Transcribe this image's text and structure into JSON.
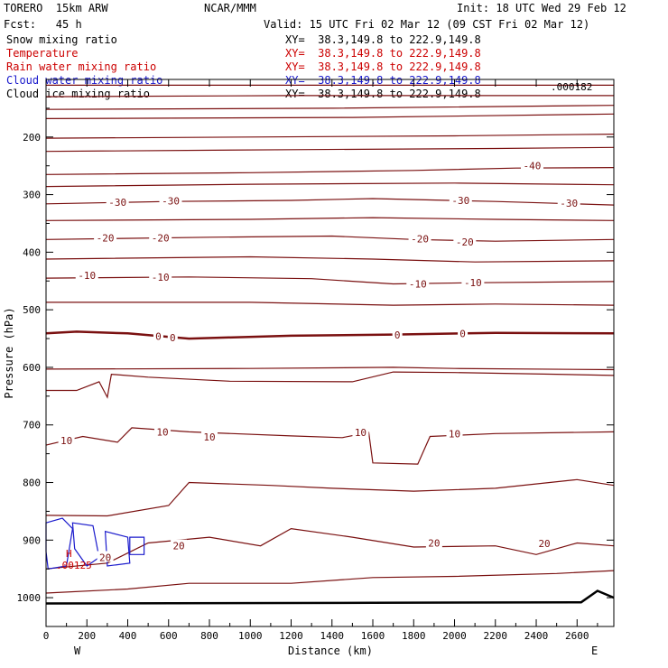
{
  "header": {
    "model": "TORERO  15km ARW",
    "org": "NCAR/MMM",
    "init": "Init: 18 UTC Wed 29 Feb 12",
    "fcst": "Fcst:   45 h",
    "valid": "Valid: 15 UTC Fri 02 Mar 12 (09 CST Fri 02 Mar 12)"
  },
  "legend": [
    {
      "label": "Snow mixing ratio",
      "xy": "XY=  38.3,149.8 to 222.9,149.8",
      "color": "#000000"
    },
    {
      "label": "Temperature",
      "xy": "XY=  38.3,149.8 to 222.9,149.8",
      "color": "#cc0000"
    },
    {
      "label": "Rain water mixing ratio",
      "xy": "XY=  38.3,149.8 to 222.9,149.8",
      "color": "#cc0000"
    },
    {
      "label": "Cloud water mixing ratio",
      "xy": "XY=  38.3,149.8 to 222.9,149.8",
      "color": "#1a1acc"
    },
    {
      "label": "Cloud ice mixing ratio",
      "xy": "XY=  38.3,149.8 to 222.9,149.8",
      "color": "#000000"
    }
  ],
  "chart_data": {
    "type": "cross-section contour",
    "xlabel": "Distance (km)",
    "ylabel": "Pressure (hPa)",
    "xlim": [
      0,
      2780
    ],
    "ylim": [
      1050,
      100
    ],
    "x_ticks": [
      0,
      200,
      400,
      600,
      800,
      1000,
      1200,
      1400,
      1600,
      1800,
      2000,
      2200,
      2400,
      2600
    ],
    "y_ticks": [
      200,
      300,
      400,
      500,
      600,
      700,
      800,
      900,
      1000
    ],
    "x_end_labels": {
      "left": "W",
      "right": "E"
    },
    "ice_max_label": ".000182",
    "cloud_water_labels": {
      "high": "H",
      "low_value": ".00125"
    },
    "temperature_labels": [
      {
        "text": "-40",
        "x": 2380,
        "p": 250
      },
      {
        "text": "-30",
        "x": 350,
        "p": 313
      },
      {
        "text": "-30",
        "x": 610,
        "p": 311
      },
      {
        "text": "-30",
        "x": 2030,
        "p": 310
      },
      {
        "text": "-30",
        "x": 2560,
        "p": 315
      },
      {
        "text": "-20",
        "x": 290,
        "p": 375
      },
      {
        "text": "-20",
        "x": 560,
        "p": 375
      },
      {
        "text": "-20",
        "x": 1830,
        "p": 377
      },
      {
        "text": "-20",
        "x": 2050,
        "p": 382
      },
      {
        "text": "-10",
        "x": 200,
        "p": 440
      },
      {
        "text": "-10",
        "x": 560,
        "p": 443
      },
      {
        "text": "-10",
        "x": 1820,
        "p": 455
      },
      {
        "text": "-10",
        "x": 2090,
        "p": 453
      },
      {
        "text": "0",
        "x": 550,
        "p": 546
      },
      {
        "text": "0",
        "x": 620,
        "p": 548
      },
      {
        "text": "0",
        "x": 1720,
        "p": 544
      },
      {
        "text": "0",
        "x": 2040,
        "p": 541
      },
      {
        "text": "10",
        "x": 100,
        "p": 727
      },
      {
        "text": "10",
        "x": 570,
        "p": 712
      },
      {
        "text": "10",
        "x": 800,
        "p": 721
      },
      {
        "text": "10",
        "x": 1540,
        "p": 713
      },
      {
        "text": "10",
        "x": 2000,
        "p": 715
      },
      {
        "text": "20",
        "x": 290,
        "p": 930
      },
      {
        "text": "20",
        "x": 650,
        "p": 910
      },
      {
        "text": "20",
        "x": 1900,
        "p": 905
      },
      {
        "text": "20",
        "x": 2440,
        "p": 906
      }
    ],
    "temperature_contours": [
      {
        "label": "-60 region",
        "points": [
          [
            0,
            110
          ],
          [
            2780,
            110
          ]
        ]
      },
      {
        "points": [
          [
            0,
            130
          ],
          [
            1200,
            128
          ],
          [
            2780,
            128
          ]
        ]
      },
      {
        "points": [
          [
            0,
            152
          ],
          [
            1400,
            150
          ],
          [
            2780,
            145
          ]
        ]
      },
      {
        "points": [
          [
            0,
            168
          ],
          [
            1500,
            166
          ],
          [
            2780,
            160
          ]
        ]
      },
      {
        "points": [
          [
            0,
            202
          ],
          [
            1000,
            200
          ],
          [
            2000,
            198
          ],
          [
            2780,
            195
          ]
        ]
      },
      {
        "points": [
          [
            0,
            225
          ],
          [
            1200,
            222
          ],
          [
            2200,
            220
          ],
          [
            2780,
            218
          ]
        ]
      },
      {
        "value": -40,
        "points": [
          [
            0,
            265
          ],
          [
            1000,
            262
          ],
          [
            1800,
            258
          ],
          [
            2300,
            254
          ],
          [
            2780,
            253
          ]
        ]
      },
      {
        "points": [
          [
            0,
            286
          ],
          [
            1000,
            282
          ],
          [
            2000,
            280
          ],
          [
            2780,
            283
          ]
        ]
      },
      {
        "value": -30,
        "points": [
          [
            0,
            316
          ],
          [
            600,
            312
          ],
          [
            1200,
            310
          ],
          [
            1600,
            307
          ],
          [
            2200,
            312
          ],
          [
            2780,
            318
          ]
        ]
      },
      {
        "points": [
          [
            0,
            345
          ],
          [
            1000,
            343
          ],
          [
            1600,
            340
          ],
          [
            2200,
            343
          ],
          [
            2780,
            345
          ]
        ]
      },
      {
        "value": -20,
        "points": [
          [
            0,
            378
          ],
          [
            800,
            374
          ],
          [
            1400,
            372
          ],
          [
            1800,
            378
          ],
          [
            2200,
            381
          ],
          [
            2780,
            378
          ]
        ]
      },
      {
        "points": [
          [
            0,
            412
          ],
          [
            1000,
            408
          ],
          [
            1600,
            412
          ],
          [
            2100,
            417
          ],
          [
            2780,
            415
          ]
        ]
      },
      {
        "value": -10,
        "points": [
          [
            0,
            445
          ],
          [
            700,
            443
          ],
          [
            1300,
            446
          ],
          [
            1700,
            455
          ],
          [
            2100,
            453
          ],
          [
            2780,
            451
          ]
        ]
      },
      {
        "points": [
          [
            0,
            487
          ],
          [
            1000,
            487
          ],
          [
            1700,
            492
          ],
          [
            2200,
            490
          ],
          [
            2780,
            492
          ]
        ]
      },
      {
        "value": 0,
        "thick": true,
        "points": [
          [
            0,
            541
          ],
          [
            150,
            538
          ],
          [
            400,
            541
          ],
          [
            700,
            550
          ],
          [
            1200,
            545
          ],
          [
            1700,
            543
          ],
          [
            2200,
            540
          ],
          [
            2780,
            541
          ]
        ]
      },
      {
        "points": [
          [
            0,
            603
          ],
          [
            1000,
            602
          ],
          [
            1700,
            600
          ],
          [
            2000,
            602
          ],
          [
            2780,
            604
          ]
        ]
      },
      {
        "points": [
          [
            0,
            640
          ],
          [
            150,
            640
          ],
          [
            260,
            625
          ],
          [
            300,
            652
          ],
          [
            320,
            612
          ],
          [
            500,
            617
          ],
          [
            900,
            624
          ],
          [
            1500,
            625
          ],
          [
            1700,
            608
          ],
          [
            2000,
            609
          ],
          [
            2500,
            612
          ],
          [
            2780,
            614
          ]
        ]
      },
      {
        "value": 10,
        "points": [
          [
            0,
            735
          ],
          [
            180,
            720
          ],
          [
            350,
            730
          ],
          [
            420,
            705
          ],
          [
            700,
            712
          ],
          [
            1200,
            719
          ],
          [
            1450,
            722
          ],
          [
            1580,
            713
          ],
          [
            1600,
            766
          ],
          [
            1820,
            768
          ],
          [
            1880,
            720
          ],
          [
            2200,
            715
          ],
          [
            2780,
            712
          ]
        ]
      },
      {
        "points": [
          [
            0,
            857
          ],
          [
            300,
            858
          ],
          [
            600,
            840
          ],
          [
            700,
            800
          ],
          [
            1100,
            805
          ],
          [
            1400,
            810
          ],
          [
            1800,
            815
          ],
          [
            2200,
            810
          ],
          [
            2600,
            795
          ],
          [
            2780,
            805
          ]
        ]
      },
      {
        "value": 20,
        "points": [
          [
            0,
            950
          ],
          [
            300,
            940
          ],
          [
            500,
            905
          ],
          [
            800,
            895
          ],
          [
            1050,
            910
          ],
          [
            1200,
            880
          ],
          [
            1500,
            895
          ],
          [
            1800,
            912
          ],
          [
            2200,
            910
          ],
          [
            2400,
            925
          ],
          [
            2600,
            905
          ],
          [
            2780,
            910
          ]
        ]
      },
      {
        "points": [
          [
            0,
            992
          ],
          [
            400,
            985
          ],
          [
            700,
            975
          ],
          [
            1200,
            975
          ],
          [
            1600,
            965
          ],
          [
            2000,
            963
          ],
          [
            2500,
            958
          ],
          [
            2780,
            953
          ]
        ]
      },
      {
        "label": "terrain",
        "thick": true,
        "black": true,
        "points": [
          [
            0,
            1010
          ],
          [
            1600,
            1009
          ],
          [
            2620,
            1008
          ],
          [
            2700,
            988
          ],
          [
            2780,
            1000
          ]
        ]
      }
    ],
    "cloud_water_contours": [
      {
        "points": [
          [
            0,
            870
          ],
          [
            80,
            862
          ],
          [
            130,
            880
          ],
          [
            100,
            945
          ],
          [
            10,
            950
          ],
          [
            0,
            920
          ]
        ]
      },
      {
        "points": [
          [
            130,
            870
          ],
          [
            230,
            875
          ],
          [
            260,
            930
          ],
          [
            200,
            945
          ],
          [
            140,
            915
          ]
        ]
      },
      {
        "points": [
          [
            290,
            885
          ],
          [
            400,
            895
          ],
          [
            410,
            940
          ],
          [
            300,
            945
          ]
        ]
      },
      {
        "points": [
          [
            410,
            895
          ],
          [
            480,
            895
          ],
          [
            480,
            925
          ],
          [
            410,
            925
          ]
        ]
      }
    ]
  }
}
